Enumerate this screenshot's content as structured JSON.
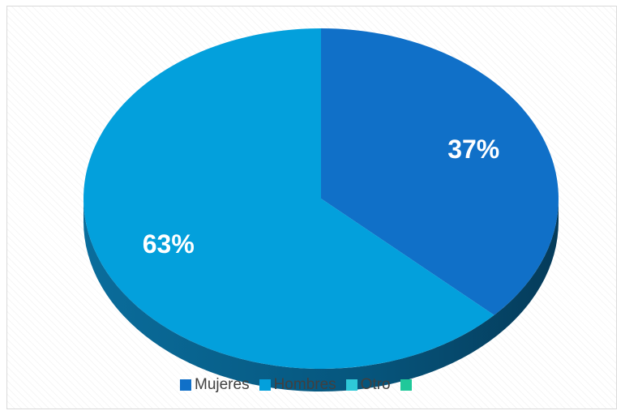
{
  "chart_data": {
    "type": "pie",
    "style": "3d",
    "slices": [
      {
        "name": "Mujeres",
        "value": 37,
        "label": "37%",
        "color": "#1070c8"
      },
      {
        "name": "Hombres",
        "value": 63,
        "label": "63%",
        "color": "#03a0dc"
      },
      {
        "name": "Otro",
        "value": 0,
        "label": "",
        "color": "#2ec8d8"
      },
      {
        "name": "",
        "value": 0,
        "label": "",
        "color": "#20c89a"
      }
    ],
    "legend_position": "bottom"
  }
}
